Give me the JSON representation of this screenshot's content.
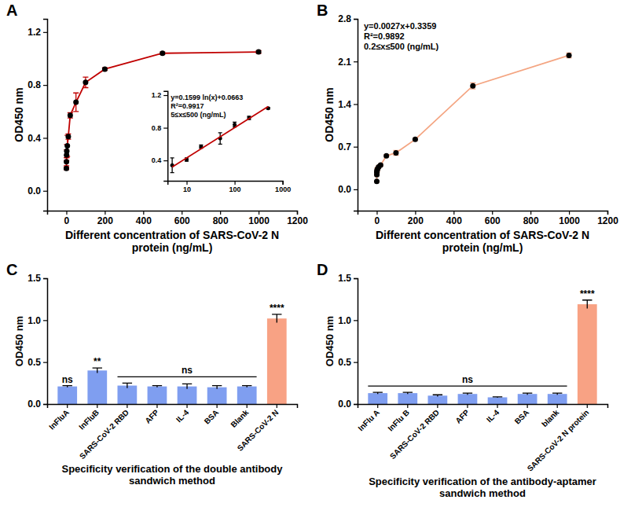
{
  "chart_data": [
    {
      "panel": "A",
      "type": "line",
      "xlabel": "Different concentration of SARS-CoV-2 N protein (ng/mL)",
      "ylabel": "OD450 nm",
      "xlim": [
        -100,
        1200
      ],
      "xticks": [
        0,
        200,
        400,
        600,
        800,
        1000,
        1200
      ],
      "ylim": [
        -0.15,
        1.3
      ],
      "yticks": [
        {
          "value": 0,
          "label": "0.0"
        },
        0.4,
        0.8,
        1.2
      ],
      "series": [
        {
          "x": [
            0,
            0.5,
            1,
            2,
            5,
            10,
            20,
            50,
            100,
            200,
            500,
            1000
          ],
          "values": [
            0.17,
            0.22,
            0.27,
            0.3,
            0.34,
            0.41,
            0.57,
            0.67,
            0.82,
            0.92,
            1.04,
            1.05
          ],
          "errors": [
            0.01,
            0.03,
            0.04,
            0.05,
            0.08,
            0.02,
            0.02,
            0.07,
            0.04,
            0.01,
            0.01,
            0.01
          ],
          "color": "#c00000",
          "marker": "circle"
        }
      ]
    },
    {
      "type": "scatter",
      "log": "x",
      "annotations": [
        "y=0.1599 ln(x)+0.0663",
        "R²=0.9917",
        "5≤x≤500 (ng/mL)"
      ],
      "xlim": [
        4,
        1000
      ],
      "xticks": [
        10,
        100,
        1000
      ],
      "ylim": [
        0.15,
        1.25
      ],
      "yticks": [
        0.4,
        0.8,
        1.2
      ],
      "series": [
        {
          "type": "scatter",
          "x": [
            5,
            10,
            20,
            50,
            100,
            200,
            500
          ],
          "values": [
            0.34,
            0.41,
            0.57,
            0.67,
            0.84,
            0.92,
            1.04
          ],
          "errors": [
            0.09,
            0.02,
            0.02,
            0.07,
            0.03,
            0.02,
            0.01
          ],
          "color": "#000000",
          "marker": "circle"
        },
        {
          "type": "line",
          "x": [
            5,
            500
          ],
          "values": [
            0.32,
            1.06
          ],
          "color": "#c00000"
        }
      ]
    },
    {
      "panel": "B",
      "type": "line",
      "xlabel": "Different concentration of SARS-CoV-2 N protein (ng/mL)",
      "ylabel": "OD450 nm",
      "annotations": [
        "y=0.0027x+0.3359",
        "R²=0.9892",
        "0.2≤x≤500 (ng/mL)"
      ],
      "xlim": [
        -100,
        1200
      ],
      "xticks": [
        0,
        200,
        400,
        600,
        800,
        1000,
        1200
      ],
      "ylim": [
        -0.35,
        2.8
      ],
      "yticks": [
        {
          "value": 0,
          "label": "0.0"
        },
        0.7,
        1.4,
        2.1,
        2.8
      ],
      "series": [
        {
          "x": [
            0,
            0.2,
            0.5,
            1,
            2,
            5,
            10,
            20,
            50,
            100,
            200,
            500,
            1000
          ],
          "values": [
            0.13,
            0.24,
            0.28,
            0.3,
            0.32,
            0.34,
            0.37,
            0.4,
            0.55,
            0.6,
            0.82,
            1.7,
            2.2
          ],
          "errors": [
            0.01,
            0.02,
            0.02,
            0.02,
            0.03,
            0.02,
            0.02,
            0.02,
            0.02,
            0.04,
            0.02,
            0.05,
            0.04
          ],
          "color": "#f4a582",
          "marker": "circle"
        }
      ]
    },
    {
      "panel": "C",
      "type": "bar",
      "xlabel": "Specificity verification of the double antibody sandwich method",
      "ylabel": "OD450 nm",
      "categories": [
        "InFluA",
        "InFluB",
        "SARS-CoV-2 RBD",
        "AFP",
        "IL-4",
        "BSA",
        "Blank",
        "SARS-CoV-2 N"
      ],
      "values": [
        0.21,
        0.4,
        0.22,
        0.21,
        0.21,
        0.2,
        0.21,
        1.02
      ],
      "errors": [
        0.01,
        0.03,
        0.03,
        0.01,
        0.03,
        0.02,
        0.01,
        0.05
      ],
      "colors": [
        "#7f9ef0",
        "#7f9ef0",
        "#7f9ef0",
        "#7f9ef0",
        "#7f9ef0",
        "#7f9ef0",
        "#7f9ef0",
        "#f8a284"
      ],
      "ylim": [
        0,
        1.5
      ],
      "yticks": [
        {
          "value": 0,
          "label": "0.0"
        },
        0.5,
        {
          "value": 1,
          "label": "1.0"
        },
        1.5
      ],
      "annotations": [
        {
          "text": "ns",
          "category": "InFluA"
        },
        {
          "text": "**",
          "category": "InFluB"
        },
        {
          "text": "ns",
          "from": "SARS-CoV-2 RBD",
          "to": "Blank"
        },
        {
          "text": "****",
          "category": "SARS-CoV-2 N"
        }
      ]
    },
    {
      "panel": "D",
      "type": "bar",
      "xlabel": "Specificity verification of the antibody-aptamer sandwich method",
      "ylabel": "OD450 nm",
      "categories": [
        "InFlu A",
        "InFlu B",
        "SARS-CoV-2 RBD",
        "AFP",
        "IL-4",
        "BSA",
        "blank",
        "SARS-CoV-2 N protein"
      ],
      "values": [
        0.13,
        0.13,
        0.1,
        0.12,
        0.08,
        0.12,
        0.12,
        1.19
      ],
      "errors": [
        0.01,
        0.01,
        0.01,
        0.01,
        0.005,
        0.01,
        0.01,
        0.05
      ],
      "colors": [
        "#7f9ef0",
        "#7f9ef0",
        "#7f9ef0",
        "#7f9ef0",
        "#7f9ef0",
        "#7f9ef0",
        "#7f9ef0",
        "#f8a284"
      ],
      "ylim": [
        0,
        1.5
      ],
      "yticks": [
        {
          "value": 0,
          "label": "0.0"
        },
        0.5,
        {
          "value": 1,
          "label": "1.0"
        },
        1.5
      ],
      "annotations": [
        {
          "text": "ns",
          "from": "InFlu A",
          "to": "blank"
        },
        {
          "text": "****",
          "category": "SARS-CoV-2 N protein"
        }
      ]
    }
  ]
}
